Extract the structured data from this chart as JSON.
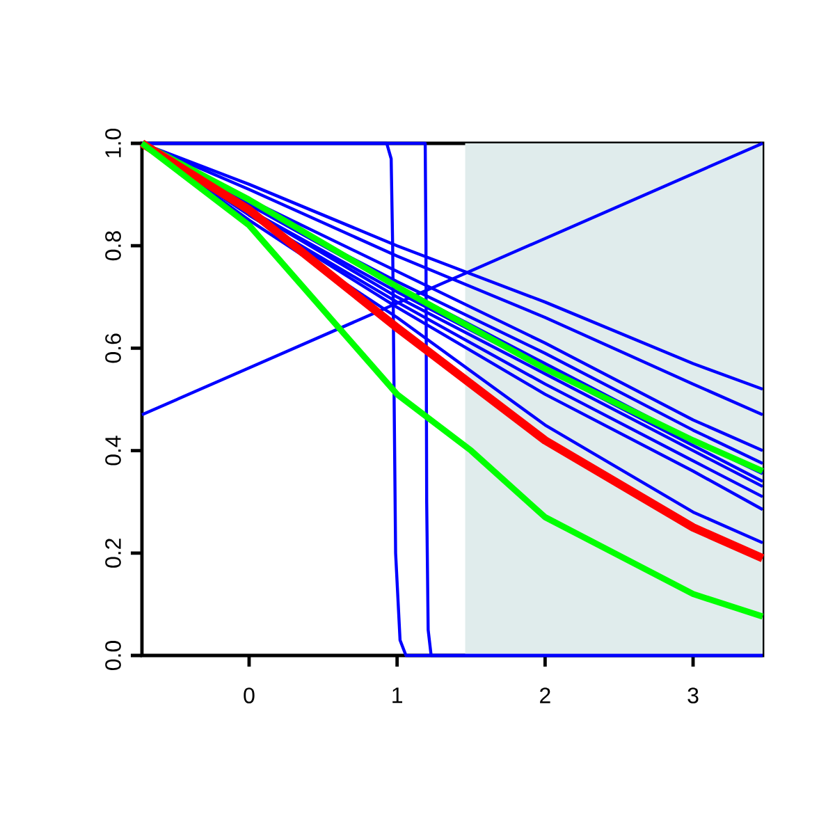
{
  "chart_data": {
    "type": "line",
    "xlim": [
      -0.724,
      3.47
    ],
    "ylim": [
      0,
      1
    ],
    "xticks": [
      0,
      1,
      2,
      3
    ],
    "yticks": [
      {
        "value": 0,
        "label": "0.0"
      },
      {
        "value": 0.2,
        "label": "0.2"
      },
      {
        "value": 0.4,
        "label": "0.4"
      },
      {
        "value": 0.6,
        "label": "0.6"
      },
      {
        "value": 0.8,
        "label": "0.8"
      },
      {
        "value": 1,
        "label": "1.0"
      }
    ],
    "grid": false,
    "marker": "none",
    "line_style": "solid",
    "bands": [
      {
        "axis": "x",
        "from": 1.46,
        "to": 3.47,
        "color": "#e0ecec"
      }
    ],
    "series": [
      {
        "color": "#0000ff",
        "x": [
          -0.724,
          0,
          1,
          2,
          3,
          3.47
        ],
        "values": [
          1,
          0.92,
          0.8,
          0.69,
          0.57,
          0.52
        ]
      },
      {
        "color": "#0000ff",
        "x": [
          -0.724,
          0,
          1,
          2,
          3,
          3.47
        ],
        "values": [
          1,
          0.91,
          0.78,
          0.66,
          0.53,
          0.47
        ]
      },
      {
        "color": "#0000ff",
        "x": [
          -0.724,
          0,
          1,
          2,
          3,
          3.47
        ],
        "values": [
          1,
          0.89,
          0.75,
          0.61,
          0.46,
          0.4
        ]
      },
      {
        "color": "#0000ff",
        "x": [
          -0.724,
          0,
          1,
          2,
          3,
          3.47
        ],
        "values": [
          1,
          0.88,
          0.73,
          0.59,
          0.44,
          0.375
        ]
      },
      {
        "color": "#0000ff",
        "x": [
          -0.724,
          0,
          1,
          2,
          3,
          3.47
        ],
        "values": [
          1,
          0.88,
          0.72,
          0.57,
          0.42,
          0.355
        ]
      },
      {
        "color": "#0000ff",
        "x": [
          -0.724,
          0,
          1,
          2,
          3,
          3.47
        ],
        "values": [
          1,
          0.87,
          0.71,
          0.56,
          0.41,
          0.34
        ]
      },
      {
        "color": "#0000ff",
        "x": [
          -0.724,
          0,
          1,
          2,
          3,
          3.47
        ],
        "values": [
          1,
          0.87,
          0.7,
          0.55,
          0.4,
          0.33
        ]
      },
      {
        "color": "#0000ff",
        "x": [
          -0.724,
          0,
          1,
          2,
          3,
          3.47
        ],
        "values": [
          1,
          0.86,
          0.69,
          0.53,
          0.38,
          0.31
        ]
      },
      {
        "color": "#0000ff",
        "x": [
          -0.724,
          0,
          1,
          2,
          3,
          3.47
        ],
        "values": [
          1,
          0.86,
          0.68,
          0.51,
          0.36,
          0.285
        ]
      },
      {
        "color": "#0000ff",
        "x": [
          -0.724,
          0,
          1,
          2,
          3,
          3.47
        ],
        "values": [
          1,
          0.85,
          0.66,
          0.45,
          0.28,
          0.22
        ]
      },
      {
        "color": "#0000ff",
        "x": [
          -0.724,
          3.47
        ],
        "values": [
          0.47,
          1.0
        ]
      },
      {
        "color": "#0000ff",
        "x": [
          -0.724,
          0.93,
          0.96,
          0.97,
          0.98,
          0.99,
          1.02,
          1.06,
          3.47
        ],
        "values": [
          1,
          1,
          0.97,
          0.8,
          0.5,
          0.2,
          0.03,
          0,
          0
        ]
      },
      {
        "color": "#0000ff",
        "x": [
          -0.724,
          1.19,
          1.195,
          1.2,
          1.21,
          1.23,
          3.47
        ],
        "values": [
          1,
          1,
          0.8,
          0.3,
          0.05,
          0,
          0
        ]
      },
      {
        "color": "#00ff00",
        "x": [
          -0.724,
          0,
          1,
          2,
          3,
          3.47
        ],
        "values": [
          1,
          0.89,
          0.72,
          0.56,
          0.42,
          0.36
        ]
      },
      {
        "color": "#ff0000",
        "x": [
          -0.724,
          0,
          1,
          2,
          3,
          3.47
        ],
        "values": [
          1,
          0.87,
          0.64,
          0.42,
          0.25,
          0.19
        ]
      },
      {
        "color": "#00ff00",
        "x": [
          -0.724,
          0,
          1,
          1.5,
          2,
          3,
          3.47
        ],
        "values": [
          1,
          0.84,
          0.51,
          0.4,
          0.27,
          0.12,
          0.076
        ]
      }
    ]
  }
}
